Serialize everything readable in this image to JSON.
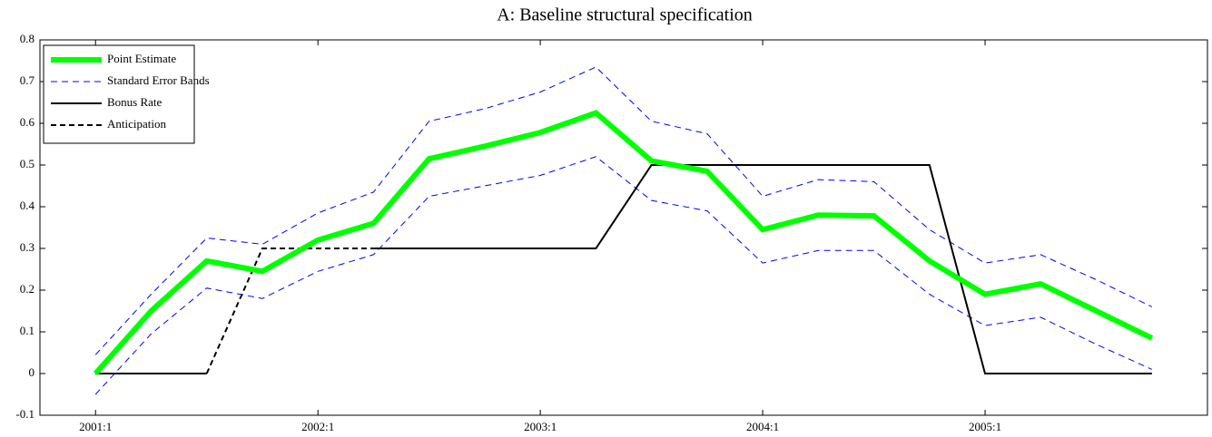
{
  "chart_data": {
    "type": "line",
    "title": "A: Baseline structural specification",
    "categories": [
      "2001:1",
      null,
      null,
      null,
      "2002:1",
      null,
      null,
      null,
      "2003:1",
      null,
      null,
      null,
      "2004:1",
      null,
      null,
      null,
      "2005:1",
      null,
      null,
      null
    ],
    "ylim": [
      -0.1,
      0.8
    ],
    "yticks": [
      -0.1,
      0,
      0.1,
      0.2,
      0.3,
      0.4,
      0.5,
      0.6,
      0.7,
      0.8
    ],
    "legend": "upper left",
    "series": [
      {
        "name": "Point Estimate",
        "color": "#00ff00",
        "width": 6,
        "dash": false,
        "values": [
          0,
          0.15,
          0.27,
          0.245,
          0.32,
          0.36,
          0.515,
          0.545,
          0.578,
          0.625,
          0.51,
          0.485,
          0.345,
          0.38,
          0.378,
          0.27,
          0.19,
          0.215,
          0.15,
          0.085
        ]
      },
      {
        "name": "Standard Error Bands",
        "color": "#0000ff",
        "width": 1,
        "dash": true,
        "values": [
          0.045,
          0.19,
          0.325,
          0.31,
          0.385,
          0.435,
          0.605,
          0.635,
          0.675,
          0.735,
          0.605,
          0.575,
          0.425,
          0.465,
          0.46,
          0.345,
          0.265,
          0.285,
          0.225,
          0.16
        ],
        "lower": [
          -0.05,
          0.095,
          0.205,
          0.18,
          0.245,
          0.285,
          0.425,
          0.45,
          0.475,
          0.52,
          0.415,
          0.39,
          0.265,
          0.295,
          0.295,
          0.19,
          0.115,
          0.135,
          0.07,
          0.01
        ]
      },
      {
        "name": "Bonus Rate",
        "color": "#000000",
        "width": 2,
        "dash": false,
        "values": [
          0,
          0,
          0,
          null,
          null,
          0.3,
          0.3,
          0.3,
          0.3,
          0.3,
          0.5,
          0.5,
          0.5,
          0.5,
          0.5,
          0.5,
          0,
          0,
          0,
          0
        ]
      },
      {
        "name": "Anticipation",
        "color": "#000000",
        "width": 2,
        "dash": true,
        "values": [
          null,
          null,
          0,
          0.3,
          0.3,
          0.3,
          null,
          null,
          null,
          null,
          null,
          null,
          null,
          null,
          null,
          null,
          null,
          null,
          null,
          null
        ]
      }
    ]
  }
}
